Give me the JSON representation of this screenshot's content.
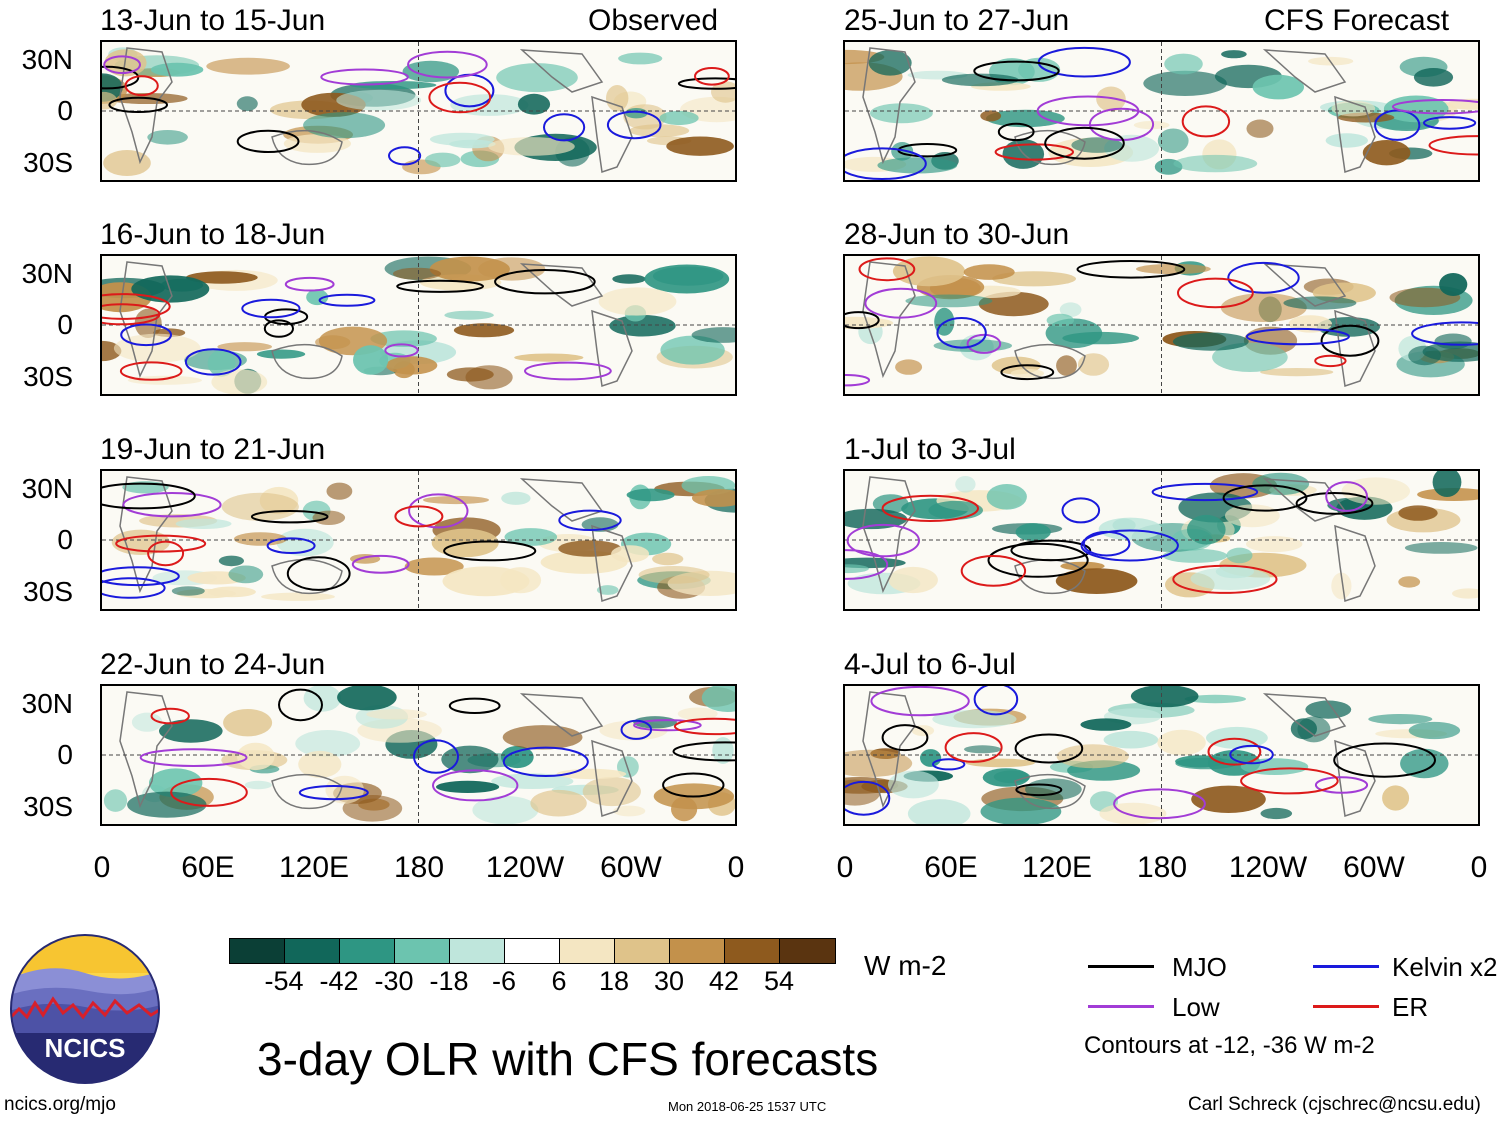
{
  "panels": [
    {
      "date": "13-Jun to 15-Jun",
      "label": "Observed"
    },
    {
      "date": "25-Jun to 27-Jun",
      "label": "CFS Forecast"
    },
    {
      "date": "16-Jun to 18-Jun",
      "label": ""
    },
    {
      "date": "28-Jun to 30-Jun",
      "label": ""
    },
    {
      "date": "19-Jun to 21-Jun",
      "label": ""
    },
    {
      "date": "1-Jul to 3-Jul",
      "label": ""
    },
    {
      "date": "22-Jun to 24-Jun",
      "label": ""
    },
    {
      "date": "4-Jul to 6-Jul",
      "label": ""
    }
  ],
  "lat_labels": [
    "30N",
    "0",
    "30S"
  ],
  "lon_labels": [
    "0",
    "60E",
    "120E",
    "180",
    "120W",
    "60W",
    "0"
  ],
  "colorbar": {
    "labels": [
      "-54",
      "-42",
      "-30",
      "-18",
      "-6",
      "6",
      "18",
      "30",
      "42",
      "54"
    ],
    "colors": [
      "#0b3f36",
      "#11675a",
      "#2e9683",
      "#6cc4af",
      "#bfe6dc",
      "#ffffff",
      "#f4e6c2",
      "#dfc38a",
      "#c3914b",
      "#8e5a1e",
      "#5a3410"
    ],
    "units": "W m-2"
  },
  "legend": {
    "items": [
      {
        "name": "MJO",
        "color": "#000000"
      },
      {
        "name": "Kelvin x2",
        "color": "#1a1adc"
      },
      {
        "name": "Low",
        "color": "#a23cd6"
      },
      {
        "name": "ER",
        "color": "#dc1a1a"
      }
    ],
    "contour_note": "Contours at -12, -36 W m-2"
  },
  "footer": {
    "title": "3-day OLR with CFS forecasts",
    "logo_text": "NCICS",
    "url": "ncics.org/mjo",
    "timestamp": "Mon 2018-06-25 1537 UTC",
    "credit": "Carl Schreck (cjschrec@ncsu.edu)"
  }
}
